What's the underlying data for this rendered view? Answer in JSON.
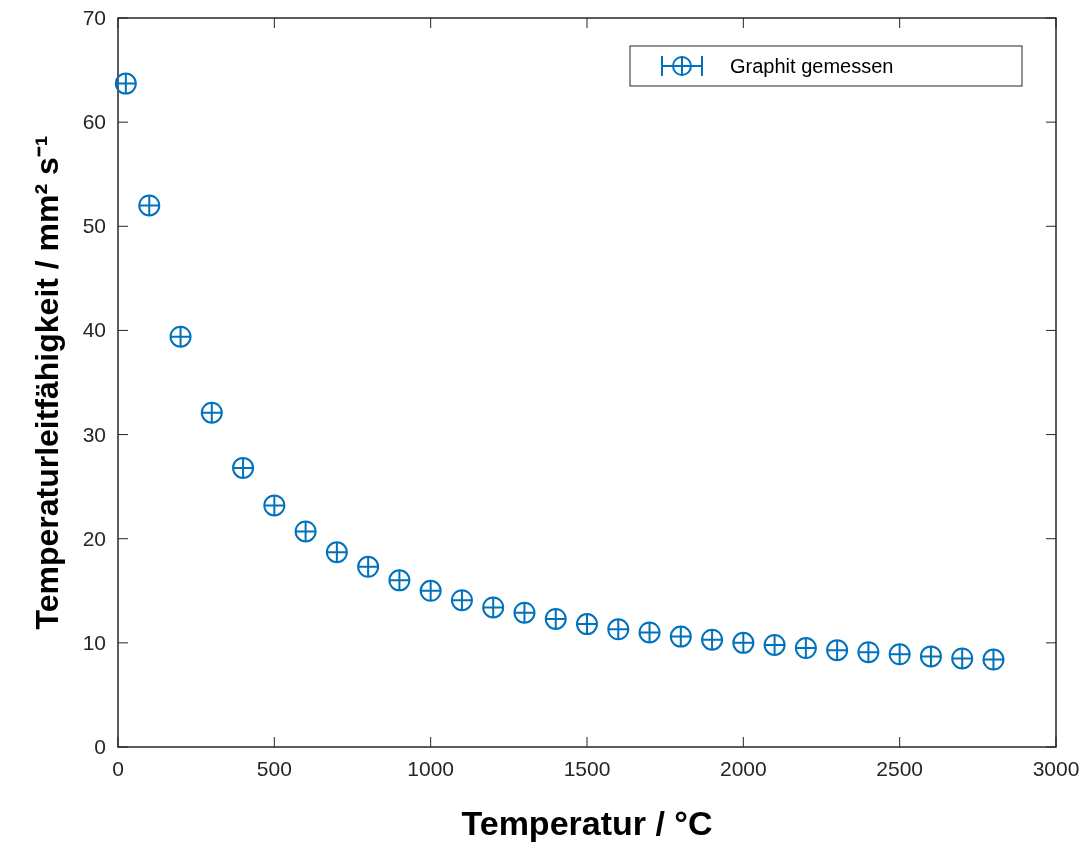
{
  "chart_data": {
    "type": "scatter",
    "xlabel": "Temperatur / °C",
    "ylabel": "Temperaturleitfähigkeit / mm² s⁻¹",
    "x": [
      25,
      100,
      200,
      300,
      400,
      500,
      600,
      700,
      800,
      900,
      1000,
      1100,
      1200,
      1300,
      1400,
      1500,
      1600,
      1700,
      1800,
      1900,
      2000,
      2100,
      2200,
      2300,
      2400,
      2500,
      2600,
      2700,
      2800
    ],
    "series": [
      {
        "name": "Graphit gemessen",
        "color": "#0072bd",
        "values": [
          63.7,
          52.0,
          39.4,
          32.1,
          26.8,
          23.2,
          20.7,
          18.7,
          17.3,
          16.0,
          15.0,
          14.1,
          13.4,
          12.9,
          12.3,
          11.8,
          11.3,
          11.0,
          10.6,
          10.3,
          10.0,
          9.8,
          9.5,
          9.3,
          9.1,
          8.9,
          8.7,
          8.5,
          8.4
        ]
      }
    ],
    "xlim": [
      0,
      3000
    ],
    "xticks": [
      0,
      500,
      1000,
      1500,
      2000,
      2500,
      3000
    ],
    "ylim": [
      0,
      70
    ],
    "yticks": [
      0,
      10,
      20,
      30,
      40,
      50,
      60,
      70
    ],
    "grid": false,
    "legend": "top right",
    "marker": "circle"
  }
}
